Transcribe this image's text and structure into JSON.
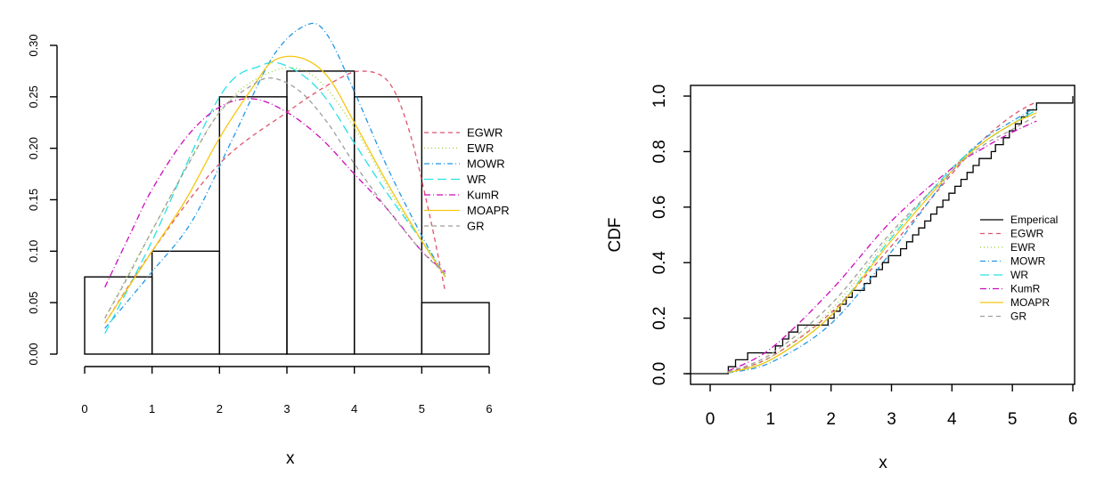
{
  "chart_data": [
    {
      "type": "histogram",
      "xlabel": "x",
      "ylabel": "",
      "xlim": [
        0,
        6
      ],
      "ylim": [
        0,
        0.3
      ],
      "xticks": [
        "0",
        "1",
        "2",
        "3",
        "4",
        "5",
        "6"
      ],
      "yticks": [
        "0.00",
        "0.05",
        "0.10",
        "0.15",
        "0.20",
        "0.25",
        "0.30"
      ],
      "bins": [
        {
          "from": 0,
          "to": 1,
          "density": 0.075
        },
        {
          "from": 1,
          "to": 2,
          "density": 0.1
        },
        {
          "from": 2,
          "to": 3,
          "density": 0.25
        },
        {
          "from": 3,
          "to": 4,
          "density": 0.275
        },
        {
          "from": 4,
          "to": 5,
          "density": 0.25
        },
        {
          "from": 5,
          "to": 6,
          "density": 0.05
        }
      ],
      "series": [
        {
          "name": "EGWR",
          "color": "#DF536B",
          "dash": "5,4",
          "x": [
            0.3,
            1.0,
            2.0,
            3.0,
            3.7,
            4.1,
            4.5,
            4.8,
            5.1,
            5.35
          ],
          "y": [
            0.03,
            0.1,
            0.185,
            0.235,
            0.265,
            0.275,
            0.265,
            0.22,
            0.14,
            0.06
          ]
        },
        {
          "name": "EWR",
          "color": "#9ACD32",
          "dash": "1,3",
          "x": [
            0.3,
            1.0,
            2.0,
            2.8,
            3.4,
            4.0,
            4.6,
            5.0,
            5.35
          ],
          "y": [
            0.035,
            0.12,
            0.235,
            0.275,
            0.27,
            0.22,
            0.15,
            0.11,
            0.075
          ]
        },
        {
          "name": "MOWR",
          "color": "#2297E6",
          "dash": "6,3,1,3",
          "x": [
            0.3,
            1.0,
            1.6,
            2.2,
            2.8,
            3.3,
            3.6,
            4.0,
            4.5,
            5.0,
            5.35
          ],
          "y": [
            0.025,
            0.08,
            0.13,
            0.21,
            0.29,
            0.32,
            0.31,
            0.255,
            0.18,
            0.115,
            0.075
          ]
        },
        {
          "name": "WR",
          "color": "#28E2E5",
          "dash": "10,5",
          "x": [
            0.3,
            1.0,
            2.0,
            2.6,
            3.0,
            3.5,
            4.0,
            4.5,
            5.0,
            5.35
          ],
          "y": [
            0.02,
            0.11,
            0.25,
            0.28,
            0.28,
            0.255,
            0.205,
            0.155,
            0.11,
            0.075
          ]
        },
        {
          "name": "KumR",
          "color": "#CD0BBC",
          "dash": "7,3,1,3",
          "x": [
            0.3,
            0.7,
            1.0,
            1.5,
            2.0,
            2.5,
            3.0,
            3.5,
            4.0,
            4.5,
            5.0,
            5.35
          ],
          "y": [
            0.065,
            0.12,
            0.16,
            0.21,
            0.24,
            0.248,
            0.235,
            0.21,
            0.175,
            0.14,
            0.1,
            0.08
          ]
        },
        {
          "name": "MOAPR",
          "color": "#F5C710",
          "dash": "",
          "x": [
            0.3,
            1.0,
            1.5,
            2.0,
            2.5,
            2.8,
            3.2,
            3.6,
            4.0,
            4.5,
            5.0,
            5.35
          ],
          "y": [
            0.03,
            0.1,
            0.15,
            0.21,
            0.26,
            0.285,
            0.288,
            0.27,
            0.225,
            0.165,
            0.11,
            0.075
          ]
        },
        {
          "name": "GR",
          "color": "#9E9E9E",
          "dash": "5,4",
          "x": [
            0.3,
            0.6,
            1.0,
            1.5,
            2.0,
            2.5,
            2.8,
            3.2,
            3.6,
            4.0,
            4.5,
            5.0,
            5.35
          ],
          "y": [
            0.035,
            0.07,
            0.12,
            0.18,
            0.235,
            0.262,
            0.268,
            0.255,
            0.225,
            0.185,
            0.14,
            0.1,
            0.078
          ]
        }
      ],
      "legend": {
        "position": "right",
        "entries": [
          "EGWR",
          "EWR",
          "MOWR",
          "WR",
          "KumR",
          "MOAPR",
          "GR"
        ]
      }
    },
    {
      "type": "line",
      "xlabel": "x",
      "ylabel": "CDF",
      "xlim": [
        0,
        6
      ],
      "ylim": [
        0,
        1
      ],
      "xticks": [
        "0",
        "1",
        "2",
        "3",
        "4",
        "5",
        "6"
      ],
      "yticks": [
        "0.0",
        "0.2",
        "0.4",
        "0.6",
        "0.8",
        "1.0"
      ],
      "empirical": {
        "name": "Emperical",
        "color": "#000000",
        "x": [
          -0.4,
          0.3,
          0.42,
          0.55,
          0.62,
          0.9,
          1.08,
          1.2,
          1.3,
          1.4,
          1.45,
          1.85,
          1.95,
          2.05,
          2.15,
          2.25,
          2.35,
          2.45,
          2.55,
          2.65,
          2.75,
          2.85,
          2.95,
          3.05,
          3.15,
          3.25,
          3.35,
          3.45,
          3.55,
          3.65,
          3.75,
          3.85,
          3.95,
          4.05,
          4.15,
          4.25,
          4.35,
          4.45,
          4.65,
          4.72,
          4.85,
          4.9,
          4.95,
          5.05,
          5.15,
          5.25,
          5.4,
          6.0
        ],
        "y": [
          0.0,
          0.025,
          0.05,
          0.05,
          0.075,
          0.075,
          0.1,
          0.125,
          0.15,
          0.15,
          0.175,
          0.175,
          0.2,
          0.225,
          0.25,
          0.275,
          0.3,
          0.3,
          0.325,
          0.35,
          0.375,
          0.4,
          0.425,
          0.425,
          0.45,
          0.475,
          0.5,
          0.525,
          0.55,
          0.575,
          0.6,
          0.625,
          0.65,
          0.675,
          0.7,
          0.725,
          0.75,
          0.775,
          0.8,
          0.825,
          0.85,
          0.85,
          0.875,
          0.9,
          0.925,
          0.95,
          0.975,
          1.0
        ]
      },
      "series": [
        {
          "name": "EGWR",
          "color": "#DF536B",
          "dash": "5,4",
          "x": [
            0.3,
            1.0,
            2.0,
            3.0,
            4.0,
            4.5,
            5.0,
            5.4
          ],
          "y": [
            0.005,
            0.06,
            0.22,
            0.46,
            0.72,
            0.84,
            0.93,
            0.98
          ]
        },
        {
          "name": "EWR",
          "color": "#9ACD32",
          "dash": "1,3",
          "x": [
            0.3,
            1.0,
            2.0,
            3.0,
            4.0,
            4.5,
            5.0,
            5.4
          ],
          "y": [
            0.005,
            0.06,
            0.23,
            0.5,
            0.74,
            0.83,
            0.9,
            0.95
          ]
        },
        {
          "name": "MOWR",
          "color": "#2297E6",
          "dash": "6,3,1,3",
          "x": [
            0.3,
            1.0,
            2.0,
            3.0,
            4.0,
            4.5,
            5.0,
            5.4
          ],
          "y": [
            0.003,
            0.04,
            0.18,
            0.44,
            0.73,
            0.84,
            0.91,
            0.96
          ]
        },
        {
          "name": "WR",
          "color": "#28E2E5",
          "dash": "10,5",
          "x": [
            0.3,
            1.0,
            2.0,
            3.0,
            4.0,
            4.5,
            5.0,
            5.4
          ],
          "y": [
            0.004,
            0.05,
            0.21,
            0.49,
            0.74,
            0.83,
            0.9,
            0.95
          ]
        },
        {
          "name": "KumR",
          "color": "#CD0BBC",
          "dash": "7,3,1,3",
          "x": [
            0.3,
            1.0,
            2.0,
            3.0,
            4.0,
            4.5,
            5.0,
            5.4
          ],
          "y": [
            0.01,
            0.09,
            0.3,
            0.55,
            0.74,
            0.81,
            0.87,
            0.91
          ]
        },
        {
          "name": "MOAPR",
          "color": "#F5C710",
          "dash": "",
          "x": [
            0.3,
            1.0,
            2.0,
            3.0,
            4.0,
            4.5,
            5.0,
            5.4
          ],
          "y": [
            0.004,
            0.05,
            0.21,
            0.48,
            0.73,
            0.83,
            0.9,
            0.94
          ]
        },
        {
          "name": "GR",
          "color": "#9E9E9E",
          "dash": "5,4",
          "x": [
            0.3,
            1.0,
            2.0,
            3.0,
            4.0,
            4.5,
            5.0,
            5.4
          ],
          "y": [
            0.007,
            0.07,
            0.25,
            0.51,
            0.73,
            0.82,
            0.88,
            0.93
          ]
        }
      ],
      "legend": {
        "position": "right",
        "entries": [
          "Emperical",
          "EGWR",
          "EWR",
          "MOWR",
          "WR",
          "KumR",
          "MOAPR",
          "GR"
        ]
      }
    }
  ]
}
